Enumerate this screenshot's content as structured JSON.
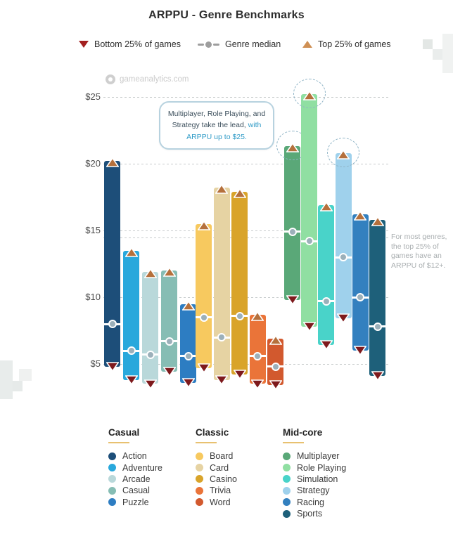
{
  "title": "ARPPU - Genre Benchmarks",
  "top_legend": {
    "bottom_label": "Bottom 25% of games",
    "median_label": "Genre median",
    "top_label": "Top 25% of games"
  },
  "watermark_text": "gameanalytics.com",
  "callout": {
    "line1": "Multiplayer, Role Playing, and",
    "line2_dark": "Strategy take the lead,",
    "line2_highlight": "with",
    "line3_highlight": "ARPPU up to $25."
  },
  "side_note": "For most genres, the top 25% of games have an ARPPU of $12+.",
  "chart_data": {
    "type": "bar",
    "subtype": "floating range bars (bottom 25% to top 25%, with median marker)",
    "title": "ARPPU - Genre Benchmarks",
    "unit": "USD",
    "ylim": [
      3,
      26.5
    ],
    "grid": "dashed horizontal gridlines",
    "legend_position": "top and bottom",
    "yticks": [
      {
        "label": "$5",
        "value": 5
      },
      {
        "label": "$10",
        "value": 10
      },
      {
        "label": "$15",
        "value": 15
      },
      {
        "label": "$20",
        "value": 20
      },
      {
        "label": "$25",
        "value": 25
      }
    ],
    "groups": [
      {
        "name": "Casual",
        "genres": [
          {
            "label": "Action",
            "color": "#1d4e79",
            "bottom25": 4.8,
            "median": 8.0,
            "top25": 20.2
          },
          {
            "label": "Adventure",
            "color": "#29a8dc",
            "bottom25": 3.8,
            "median": 6.0,
            "top25": 13.5
          },
          {
            "label": "Arcade",
            "color": "#b9d8da",
            "bottom25": 3.5,
            "median": 5.7,
            "top25": 11.9
          },
          {
            "label": "Casual",
            "color": "#86bdb4",
            "bottom25": 4.4,
            "median": 6.7,
            "top25": 12.0
          },
          {
            "label": "Puzzle",
            "color": "#2d7dc2",
            "bottom25": 3.6,
            "median": 5.6,
            "top25": 9.5
          }
        ]
      },
      {
        "name": "Classic",
        "genres": [
          {
            "label": "Board",
            "color": "#f7c95f",
            "bottom25": 4.7,
            "median": 8.5,
            "top25": 15.5
          },
          {
            "label": "Card",
            "color": "#e6d3a3",
            "bottom25": 3.8,
            "median": 7.0,
            "top25": 18.2
          },
          {
            "label": "Casino",
            "color": "#d9a42a",
            "bottom25": 4.2,
            "median": 8.6,
            "top25": 17.9
          },
          {
            "label": "Trivia",
            "color": "#ea7439",
            "bottom25": 3.5,
            "median": 5.6,
            "top25": 8.7
          },
          {
            "label": "Word",
            "color": "#d2592e",
            "bottom25": 3.4,
            "median": 4.8,
            "top25": 6.9
          }
        ]
      },
      {
        "name": "Mid-core",
        "genres": [
          {
            "label": "Multiplayer",
            "color": "#5aa878",
            "bottom25": 9.8,
            "median": 14.9,
            "top25": 21.3,
            "highlighted": true
          },
          {
            "label": "Role Playing",
            "color": "#90dfa2",
            "bottom25": 7.8,
            "median": 14.2,
            "top25": 25.2,
            "highlighted": true
          },
          {
            "label": "Simulation",
            "color": "#49d3c9",
            "bottom25": 6.4,
            "median": 9.7,
            "top25": 16.9
          },
          {
            "label": "Strategy",
            "color": "#9fd1ec",
            "bottom25": 8.4,
            "median": 13.0,
            "top25": 20.8,
            "highlighted": true
          },
          {
            "label": "Racing",
            "color": "#3380bf",
            "bottom25": 6.0,
            "median": 10.0,
            "top25": 16.2
          },
          {
            "label": "Sports",
            "color": "#1e607a",
            "bottom25": 4.1,
            "median": 7.8,
            "top25": 15.8
          }
        ]
      }
    ],
    "highlighted_genres": [
      "Multiplayer",
      "Role Playing",
      "Strategy"
    ]
  },
  "colors": {
    "top_marker": "#b5703c",
    "bottom_marker": "#7e1a1d",
    "legend_top_triangle": "#cf9054",
    "legend_bottom_triangle": "#a32020",
    "median_dot": "#9cb0ba",
    "callout_highlight": "#2f9bc7",
    "callout_border": "#b7d2df",
    "group_underline": "#e8c170",
    "grid": "#c7cbcc",
    "highlight_ring": "#8fb4c6"
  }
}
